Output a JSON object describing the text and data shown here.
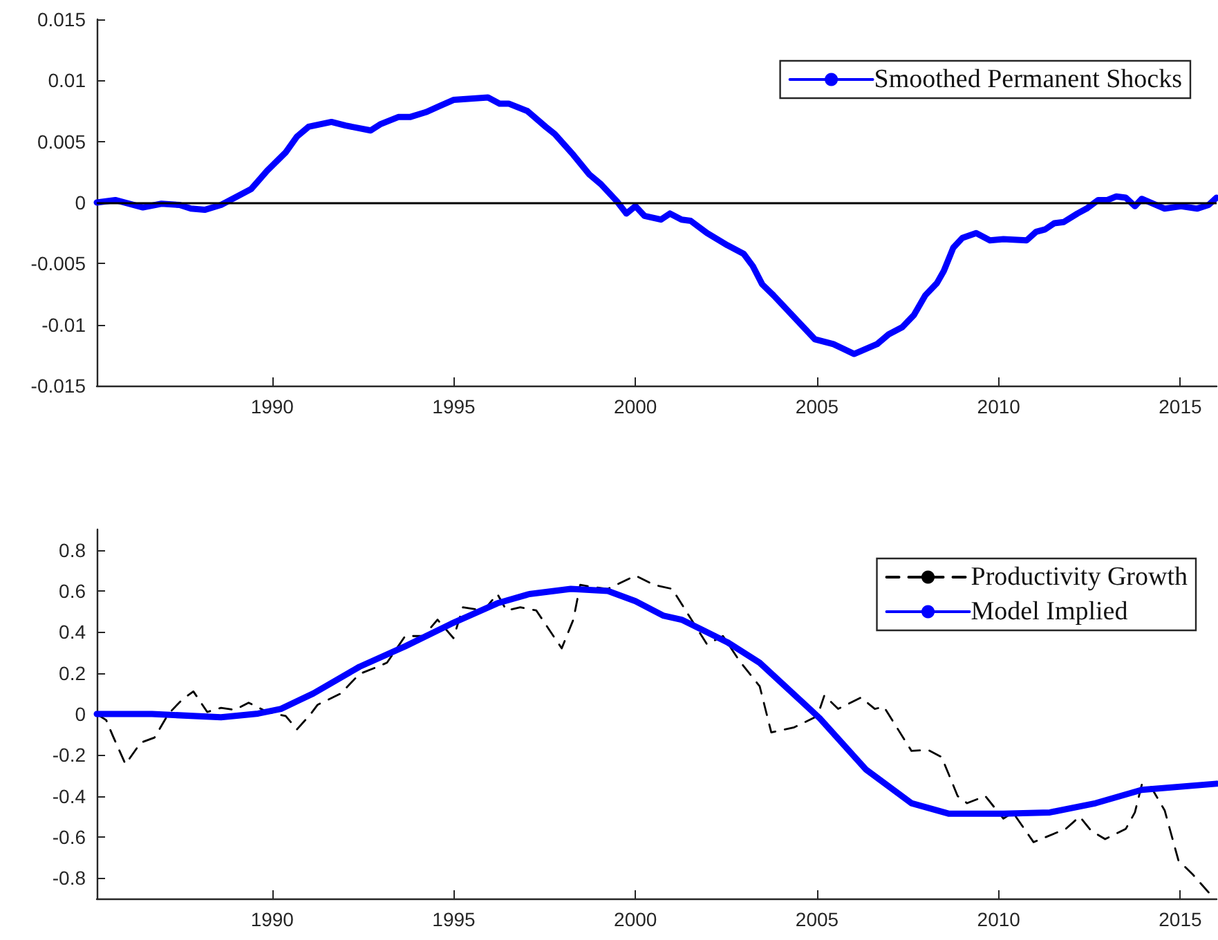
{
  "chart_data": [
    {
      "type": "line",
      "xlim": [
        1985.17,
        2016
      ],
      "xticks": [
        1990,
        1995,
        2000,
        2005,
        2010,
        2015
      ],
      "ylim": [
        -0.015,
        0.015
      ],
      "yticks": [
        -0.015,
        -0.01,
        -0.005,
        0,
        0.005,
        0.01,
        0.015
      ],
      "legend": "top right",
      "marker": "none",
      "grid": false,
      "ref_lines": [
        {
          "axis": "y",
          "value": 0,
          "color": "#000000",
          "line_style": "solid"
        }
      ],
      "series": [
        {
          "name": "Smoothed Permanent Shocks",
          "color": "#0000ff",
          "line_style": "solid",
          "x": [
            1985.17,
            1985.68,
            1986.44,
            1986.95,
            1987.45,
            1987.76,
            1988.14,
            1988.59,
            1988.97,
            1989.42,
            1989.86,
            1990.37,
            1990.68,
            1991,
            1991.63,
            1992.02,
            1992.71,
            1992.97,
            1993.47,
            1993.79,
            1994.23,
            1994.61,
            1994.99,
            1995.94,
            1996.26,
            1996.51,
            1997.02,
            1997.53,
            1997.78,
            1998.29,
            1998.73,
            1999.05,
            1999.49,
            1999.75,
            2000,
            2000.25,
            2000.7,
            2000.95,
            2001.27,
            2001.52,
            2001.97,
            2002.53,
            2002.98,
            2003.23,
            2003.49,
            2003.8,
            2004.94,
            2005.45,
            2006.02,
            2006.65,
            2006.97,
            2007.35,
            2007.67,
            2007.98,
            2008.3,
            2008.49,
            2008.75,
            2009,
            2009.38,
            2009.76,
            2010.13,
            2010.77,
            2011.03,
            2011.28,
            2011.53,
            2011.79,
            2012.17,
            2012.42,
            2012.74,
            2012.99,
            2013.24,
            2013.5,
            2013.75,
            2013.94,
            2014.57,
            2015.02,
            2015.46,
            2015.78,
            2016
          ],
          "values": [
            0,
            0.0002,
            -0.0004,
            -0.0001,
            -0.0002,
            -0.0005,
            -0.0006,
            -0.0002,
            0.0004,
            0.0011,
            0.0026,
            0.0041,
            0.0054,
            0.0062,
            0.0066,
            0.0063,
            0.0059,
            0.0064,
            0.007,
            0.007,
            0.0074,
            0.0079,
            0.0084,
            0.0086,
            0.0081,
            0.0081,
            0.0075,
            0.0062,
            0.0056,
            0.0039,
            0.0023,
            0.0015,
            0.0001,
            -0.0009,
            -0.0003,
            -0.0011,
            -0.0014,
            -0.0009,
            -0.0014,
            -0.0015,
            -0.0025,
            -0.0035,
            -0.0042,
            -0.0052,
            -0.0067,
            -0.0076,
            -0.0112,
            -0.0116,
            -0.0124,
            -0.0116,
            -0.0108,
            -0.0102,
            -0.0092,
            -0.0076,
            -0.0066,
            -0.0056,
            -0.0037,
            -0.0029,
            -0.0025,
            -0.0031,
            -0.003,
            -0.0031,
            -0.0024,
            -0.0022,
            -0.0017,
            -0.0016,
            -0.0009,
            -0.0005,
            0.0002,
            0.0002,
            0.0005,
            0.0004,
            -0.0003,
            0.0003,
            -0.0005,
            -0.0003,
            -0.0005,
            -0.0002,
            0.0004
          ]
        }
      ]
    },
    {
      "type": "line",
      "xlim": [
        1985.17,
        2016
      ],
      "xticks": [
        1990,
        1995,
        2000,
        2005,
        2010,
        2015
      ],
      "ylim": [
        -0.9,
        0.9
      ],
      "yticks": [
        -0.8,
        -0.6,
        -0.4,
        -0.2,
        0,
        0.2,
        0.4,
        0.6,
        0.8
      ],
      "legend": "top right",
      "marker": "none",
      "grid": false,
      "series": [
        {
          "name": "Productivity Growth",
          "color": "#000000",
          "line_style": "dashed",
          "x": [
            1985.17,
            1985.43,
            1985.62,
            1985.96,
            1986.38,
            1986.76,
            1987.14,
            1987.52,
            1987.83,
            1988.21,
            1988.59,
            1988.97,
            1989.35,
            1989.86,
            1990.37,
            1990.68,
            1991.06,
            1991.25,
            1991.89,
            1992.4,
            1992.9,
            1993.16,
            1993.66,
            1994.17,
            1994.55,
            1994.99,
            1995.25,
            1995.82,
            1996.2,
            1996.45,
            1996.83,
            1997.27,
            1997.97,
            1998.29,
            1998.48,
            1998.79,
            1999.24,
            2000,
            2000.51,
            2001.01,
            2001.33,
            2001.97,
            2002.41,
            2002.86,
            2003.42,
            2003.74,
            2004.37,
            2005.01,
            2005.2,
            2005.58,
            2006.21,
            2006.59,
            2006.84,
            2007.6,
            2008.05,
            2008.43,
            2008.87,
            2009.13,
            2009.63,
            2010.13,
            2010.39,
            2010.96,
            2011.85,
            2012.23,
            2012.55,
            2012.93,
            2013.5,
            2013.75,
            2013.94,
            2014.19,
            2014.57,
            2014.95,
            2015.33,
            2015.78
          ],
          "values": [
            0,
            -0.03,
            -0.11,
            -0.245,
            -0.14,
            -0.115,
            0,
            0.07,
            0.11,
            0.01,
            0.03,
            0.02,
            0.055,
            0.01,
            -0.01,
            -0.075,
            0,
            0.045,
            0.1,
            0.195,
            0.23,
            0.25,
            0.38,
            0.38,
            0.46,
            0.37,
            0.52,
            0.505,
            0.585,
            0.505,
            0.52,
            0.505,
            0.32,
            0.46,
            0.63,
            0.62,
            0.61,
            0.675,
            0.63,
            0.61,
            0.52,
            0.34,
            0.38,
            0.26,
            0.135,
            -0.09,
            -0.065,
            -0.01,
            0.09,
            0.025,
            0.08,
            0.025,
            0.035,
            -0.18,
            -0.175,
            -0.21,
            -0.4,
            -0.435,
            -0.4,
            -0.51,
            -0.48,
            -0.625,
            -0.56,
            -0.5,
            -0.57,
            -0.61,
            -0.56,
            -0.48,
            -0.345,
            -0.355,
            -0.47,
            -0.715,
            -0.78,
            -0.87
          ]
        },
        {
          "name": "Model Implied",
          "color": "#0000ff",
          "line_style": "solid",
          "x": [
            1985.17,
            1986.69,
            1988.59,
            1989.61,
            1990.24,
            1991.13,
            1992.4,
            1993.66,
            1994.93,
            1996.2,
            1997.08,
            1998.22,
            1999.24,
            2000,
            2000.76,
            2001.27,
            2002.53,
            2003.42,
            2005.07,
            2006.34,
            2007.6,
            2008.62,
            2010.13,
            2011.41,
            2012.67,
            2013.94,
            2016
          ],
          "values": [
            0,
            0,
            -0.016,
            0.002,
            0.025,
            0.1,
            0.23,
            0.33,
            0.44,
            0.54,
            0.585,
            0.61,
            0.6,
            0.55,
            0.48,
            0.46,
            0.35,
            0.25,
            -0.02,
            -0.27,
            -0.435,
            -0.486,
            -0.486,
            -0.48,
            -0.435,
            -0.37,
            -0.34
          ]
        }
      ]
    }
  ]
}
